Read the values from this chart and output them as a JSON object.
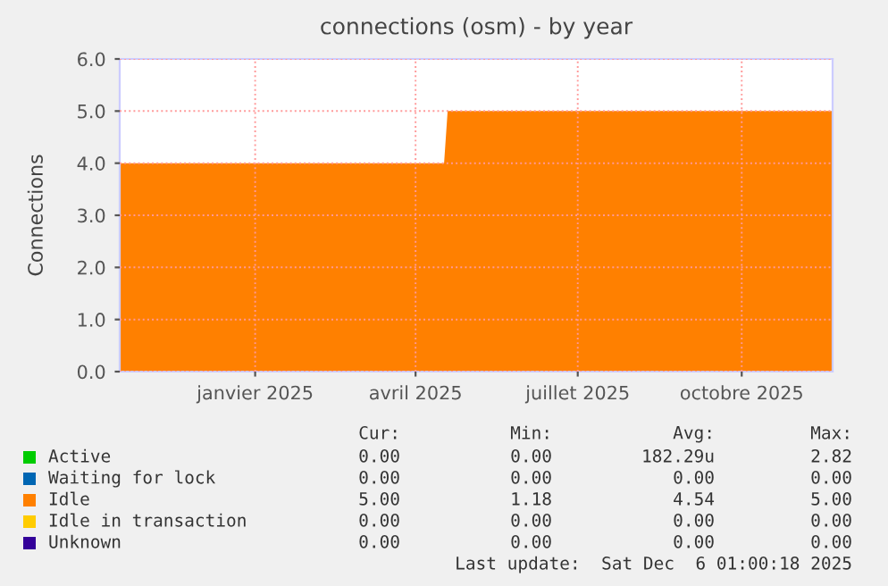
{
  "chart_data": {
    "type": "area",
    "title": "connections (osm) - by year",
    "ylabel": "Connections",
    "x": [
      "2024-11-01",
      "2025-05-02",
      "2025-05-04",
      "2025-12-06"
    ],
    "series": [
      {
        "name": "Active",
        "color": "#00cc00",
        "values": [
          null,
          null,
          null,
          null
        ]
      },
      {
        "name": "Waiting for lock",
        "color": "#0066b3",
        "values": [
          null,
          null,
          null,
          null
        ]
      },
      {
        "name": "Idle",
        "color": "#ff8000",
        "values": [
          4.0,
          4.0,
          5.0,
          5.0
        ]
      },
      {
        "name": "Idle in transaction",
        "color": "#ffcc00",
        "values": [
          null,
          null,
          null,
          null
        ]
      },
      {
        "name": "Unknown",
        "color": "#330099",
        "values": [
          null,
          null,
          null,
          null
        ]
      }
    ],
    "xlim": [
      "2024-11-01",
      "2025-12-06"
    ],
    "xticks": [
      {
        "value": "2025-01-16",
        "label": "janvier 2025"
      },
      {
        "value": "2025-04-16",
        "label": "avril 2025"
      },
      {
        "value": "2025-07-16",
        "label": "juillet 2025"
      },
      {
        "value": "2025-10-16",
        "label": "octobre 2025"
      }
    ],
    "ylim": [
      0,
      6.0
    ],
    "yticks": [
      {
        "value": 0,
        "label": "0.0"
      },
      {
        "value": 1,
        "label": "1.0"
      },
      {
        "value": 2,
        "label": "2.0"
      },
      {
        "value": 3,
        "label": "3.0"
      },
      {
        "value": 4,
        "label": "4.0"
      },
      {
        "value": 5,
        "label": "5.0"
      },
      {
        "value": 6,
        "label": "6.0"
      }
    ],
    "grid": true,
    "legend": "bottom",
    "annotations": [
      "Cur:",
      "Min:",
      "Avg:",
      "Max:",
      "0.00",
      "0.00",
      "182.29u",
      "2.82",
      "0.00",
      "0.00",
      "0.00",
      "0.00",
      "5.00",
      "1.18",
      "4.54",
      "5.00",
      "0.00",
      "0.00",
      "0.00",
      "0.00",
      "0.00",
      "0.00",
      "0.00",
      "0.00",
      "Last update:  Sat Dec  6 01:00:18 2025"
    ]
  }
}
